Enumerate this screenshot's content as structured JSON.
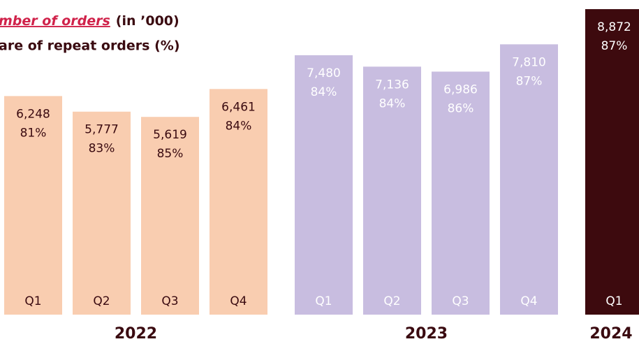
{
  "chart_data": {
    "type": "bar",
    "legend": [
      "mber of orders",
      "(in ’000)",
      "are of repeat orders (%)"
    ],
    "ylim": [
      -350,
      9000
    ],
    "series": [
      {
        "name": "2022",
        "color": "#f9cdb0",
        "label_color": "#3a0a10",
        "categories": [
          "Q1",
          "Q2",
          "Q3",
          "Q4"
        ],
        "values": [
          6248,
          5777,
          5619,
          6461
        ],
        "value_labels": [
          "6,248",
          "5,777",
          "5,619",
          "6,461"
        ],
        "repeat_share": [
          81,
          83,
          85,
          84
        ],
        "repeat_share_labels": [
          "81%",
          "83%",
          "85%",
          "84%"
        ]
      },
      {
        "name": "2023",
        "color": "#c8bde0",
        "label_color": "#ffffff",
        "categories": [
          "Q1",
          "Q2",
          "Q3",
          "Q4"
        ],
        "values": [
          7480,
          7136,
          6986,
          7810
        ],
        "value_labels": [
          "7,480",
          "7,136",
          "6,986",
          "7,810"
        ],
        "repeat_share": [
          84,
          84,
          86,
          87
        ],
        "repeat_share_labels": [
          "84%",
          "84%",
          "86%",
          "87%"
        ]
      },
      {
        "name": "2024",
        "color": "#3d0a0e",
        "label_color": "#ffffff",
        "categories": [
          "Q1"
        ],
        "values": [
          8872
        ],
        "value_labels": [
          "8,872"
        ],
        "repeat_share": [
          87
        ],
        "repeat_share_labels": [
          "87%"
        ]
      }
    ]
  }
}
